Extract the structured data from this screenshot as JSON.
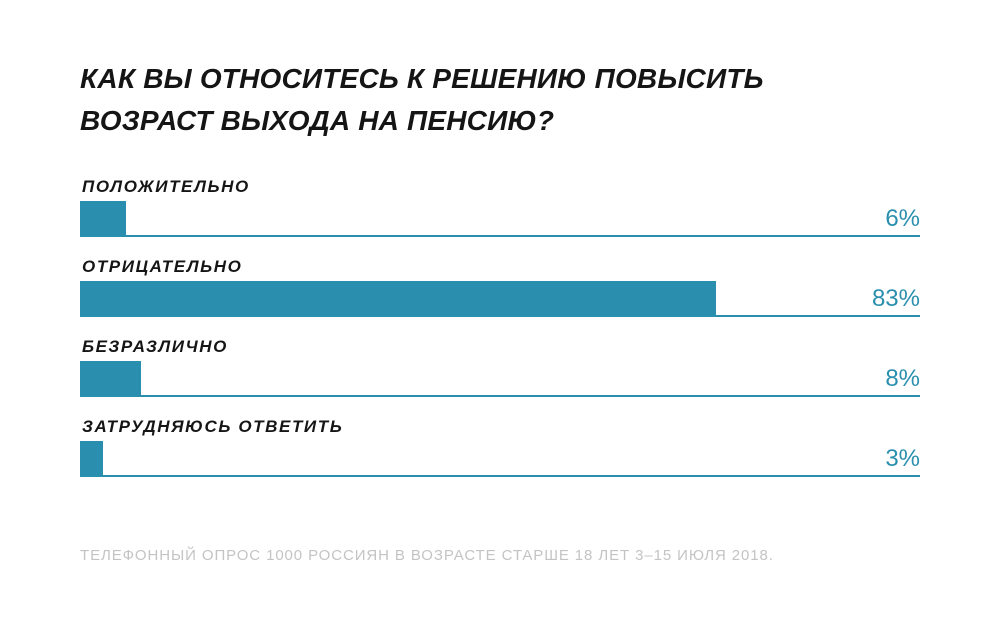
{
  "title_lines": [
    "КАК ВЫ ОТНОСИТЕСЬ К РЕШЕНИЮ ПОВЫСИТЬ",
    "ВОЗРАСТ ВЫХОДА НА ПЕНСИЮ?"
  ],
  "source": "ТЕЛЕФОННЫЙ ОПРОС 1000 РОССИЯН В ВОЗРАСТЕ СТАРШЕ 18 ЛЕТ 3–15 ИЮЛЯ 2018.",
  "colors": {
    "bar": "#2a8fae",
    "text": "#151515",
    "source_text": "#c4c4c4"
  },
  "chart_data": {
    "type": "bar",
    "orientation": "horizontal",
    "title": "КАК ВЫ ОТНОСИТЕСЬ К РЕШЕНИЮ ПОВЫСИТЬ ВОЗРАСТ ВЫХОДА НА ПЕНСИЮ?",
    "categories": [
      "ПОЛОЖИТЕЛЬНО",
      "ОТРИЦАТЕЛЬНО",
      "БЕЗРАЗЛИЧНО",
      "ЗАТРУДНЯЮСЬ ОТВЕТИТЬ"
    ],
    "values": [
      6,
      83,
      8,
      3
    ],
    "value_labels": [
      "6%",
      "83%",
      "8%",
      "3%"
    ],
    "unit": "%",
    "xlim": [
      0,
      100
    ],
    "grid": false,
    "legend": "none"
  }
}
